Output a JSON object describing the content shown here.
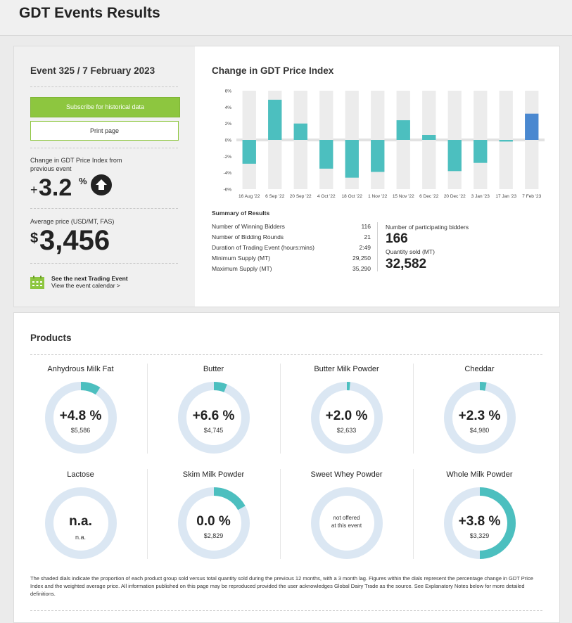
{
  "page": {
    "title": "GDT Events Results"
  },
  "event": {
    "title": "Event 325 / 7 February 2023",
    "subscribe_label": "Subscribe for historical data",
    "print_label": "Print page",
    "change_label": "Change in GDT Price Index from previous event",
    "change_sign": "+",
    "change_value": "3.2",
    "change_unit": "%",
    "direction_icon": "arrow-up-circle-icon",
    "avg_label": "Average price (USD/MT, FAS)",
    "avg_currency": "$",
    "avg_value": "3,456",
    "next_event_title": "See the next Trading Event",
    "next_event_link": "View the event calendar >",
    "calendar_icon": "calendar-icon"
  },
  "chart": {
    "title": "Change in GDT Price Index"
  },
  "chart_data": {
    "type": "bar",
    "categories": [
      "16 Aug '22",
      "6 Sep '22",
      "20 Sep '22",
      "4 Oct '22",
      "18 Oct '22",
      "1 Nov '22",
      "15 Nov '22",
      "6 Dec '22",
      "20 Dec '22",
      "3 Jan '23",
      "17 Jan '23",
      "7 Feb '23"
    ],
    "values": [
      -2.9,
      4.9,
      2.0,
      -3.5,
      -4.6,
      -3.9,
      2.4,
      0.6,
      -3.8,
      -2.8,
      -0.2,
      3.2
    ],
    "ytick_labels": [
      "6%",
      "4%",
      "2%",
      "0%",
      "-2%",
      "-4%",
      "-6%"
    ],
    "ylim": [
      -6,
      6
    ],
    "colors": {
      "default": "#4cbfbf",
      "latest": "#4a88d0",
      "background": "#ececec"
    }
  },
  "summary": {
    "title": "Summary of Results",
    "rows": [
      {
        "label": "Number of Winning Bidders",
        "value": "116"
      },
      {
        "label": "Number of Bidding Rounds",
        "value": "21"
      },
      {
        "label": "Duration of Trading Event (hours:mins)",
        "value": "2:49"
      },
      {
        "label": "Minimum Supply (MT)",
        "value": "29,250"
      },
      {
        "label": "Maximum Supply (MT)",
        "value": "35,290"
      }
    ],
    "participating_label": "Number of participating bidders",
    "participating_value": "166",
    "quantity_label": "Quantity sold (MT)",
    "quantity_value": "32,582"
  },
  "products": {
    "title": "Products",
    "items": [
      {
        "name": "Anhydrous Milk Fat",
        "change": "+4.8 %",
        "price": "$5,586",
        "share": 0.09
      },
      {
        "name": "Butter",
        "change": "+6.6 %",
        "price": "$4,745",
        "share": 0.06
      },
      {
        "name": "Butter Milk Powder",
        "change": "+2.0 %",
        "price": "$2,633",
        "share": 0.015
      },
      {
        "name": "Cheddar",
        "change": "+2.3 %",
        "price": "$4,980",
        "share": 0.03
      },
      {
        "name": "Lactose",
        "change": "n.a.",
        "price": "n.a.",
        "share": 0
      },
      {
        "name": "Skim Milk Powder",
        "change": "0.0 %",
        "price": "$2,829",
        "share": 0.17
      },
      {
        "name": "Sweet Whey Powder",
        "change": "",
        "price": "",
        "note_line1": "not offered",
        "note_line2": "at this event",
        "share": 0
      },
      {
        "name": "Whole Milk Powder",
        "change": "+3.8 %",
        "price": "$3,329",
        "share": 0.5
      }
    ],
    "ring_colors": {
      "fill": "#4cbfbf",
      "track": "#dbe7f3"
    },
    "footnote": "The shaded dials indicate the proportion of each product group sold versus total quantity sold during the previous 12 months, with a 3 month lag. Figures within the dials represent the percentage change in GDT Price Index and the weighted average price. All information published on this page may be reproduced provided the user acknowledges Global Dairy Trade as the source. See Explanatory Notes below for more detailed definitions."
  }
}
